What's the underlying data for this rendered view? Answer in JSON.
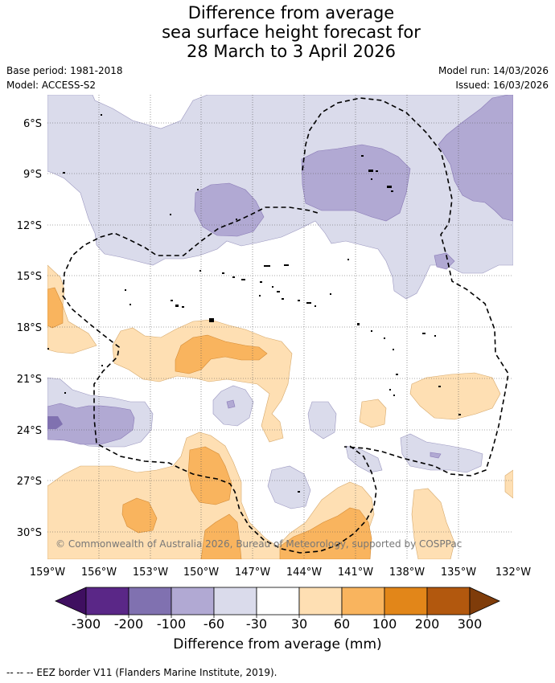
{
  "title_lines": [
    "Difference from average",
    "sea surface height forecast for",
    "28 March to 3 April 2026"
  ],
  "base_period": "Base period: 1981-2018",
  "model": "Model: ACCESS-S2",
  "model_run": "Model run: 14/03/2026",
  "issued": "Issued: 16/03/2026",
  "copyright": "© Commonwealth of Australia 2026, Bureau of Meteorology, supported by COSPPac",
  "lat_labels": [
    "6°S",
    "9°S",
    "12°S",
    "15°S",
    "18°S",
    "21°S",
    "24°S",
    "27°S",
    "30°S"
  ],
  "lon_labels": [
    "159°W",
    "156°W",
    "153°W",
    "150°W",
    "147°W",
    "144°W",
    "141°W",
    "138°W",
    "135°W",
    "132°W"
  ],
  "colorbar": {
    "title": "Difference from average (mm)",
    "ticks": [
      "-300",
      "-200",
      "-100",
      "-60",
      "-30",
      "30",
      "60",
      "100",
      "200",
      "300"
    ],
    "colors": [
      "#3f0f60",
      "#5a2787",
      "#8071b0",
      "#b1a9d3",
      "#dadbeb",
      "#ffffff",
      "#fedfb3",
      "#f9b45e",
      "#e28619",
      "#b2580e",
      "#7f3c0a"
    ]
  },
  "footer": "--  --  -- EEZ border V11 (Flanders Marine Institute, 2019)."
}
